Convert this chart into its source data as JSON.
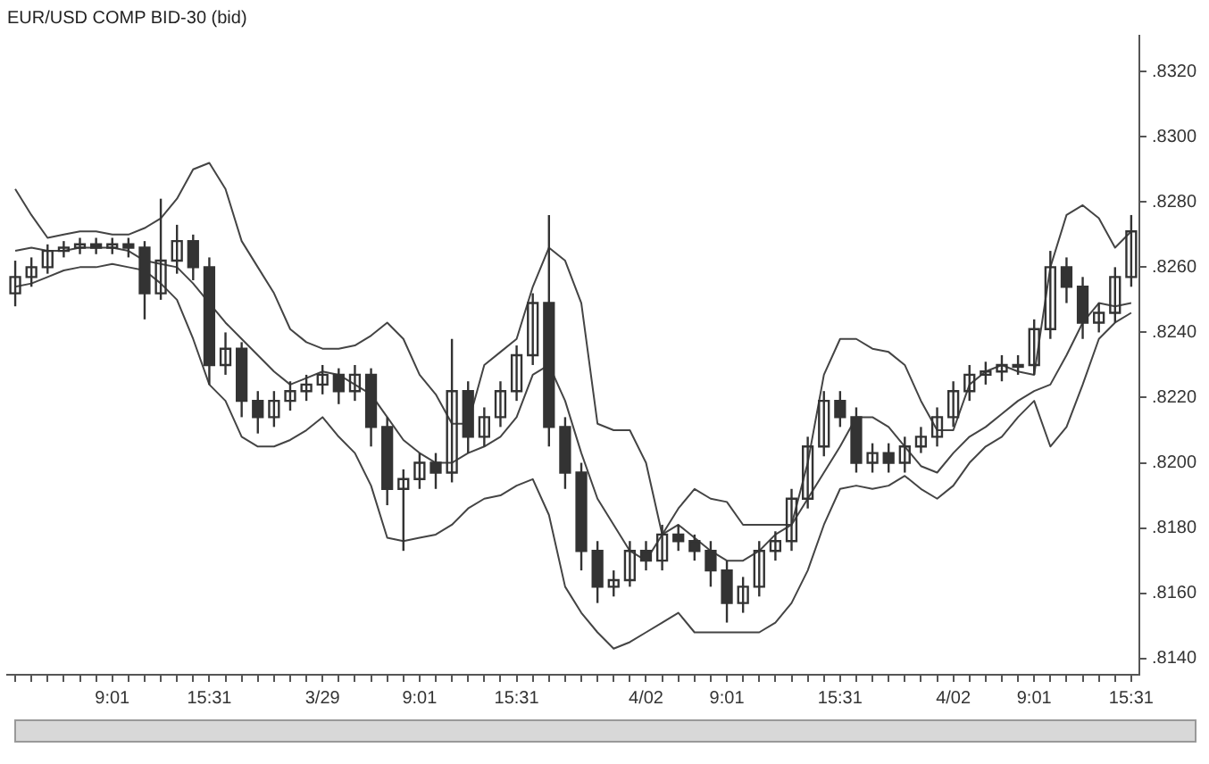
{
  "chart_data": {
    "type": "candlestick",
    "title": "EUR/USD COMP BID-30 (bid)",
    "color": "#333333",
    "categories": [
      null,
      null,
      null,
      null,
      null,
      null,
      "9:01",
      null,
      null,
      null,
      null,
      null,
      "15:31",
      null,
      null,
      null,
      null,
      null,
      null,
      "3/29",
      null,
      null,
      null,
      null,
      null,
      "9:01",
      null,
      null,
      null,
      null,
      null,
      "15:31",
      null,
      null,
      null,
      null,
      null,
      null,
      null,
      "4/02",
      null,
      null,
      null,
      null,
      "9:01",
      null,
      null,
      null,
      null,
      null,
      null,
      "15:31",
      null,
      null,
      null,
      null,
      null,
      null,
      "4/02",
      null,
      null,
      null,
      null,
      "9:01",
      null,
      null,
      null,
      null,
      null,
      "15:31"
    ],
    "ohlc": [
      [
        0.8252,
        0.8262,
        0.8248,
        0.8257
      ],
      [
        0.8257,
        0.8263,
        0.8254,
        0.826
      ],
      [
        0.826,
        0.8267,
        0.8258,
        0.8265
      ],
      [
        0.8265,
        0.8268,
        0.8263,
        0.8266
      ],
      [
        0.8266,
        0.8269,
        0.8264,
        0.8267
      ],
      [
        0.8267,
        0.8269,
        0.8264,
        0.8266
      ],
      [
        0.8266,
        0.8269,
        0.8264,
        0.8267
      ],
      [
        0.8267,
        0.8269,
        0.8263,
        0.8266
      ],
      [
        0.8266,
        0.8268,
        0.8244,
        0.8252
      ],
      [
        0.8252,
        0.8281,
        0.825,
        0.8262
      ],
      [
        0.8262,
        0.8273,
        0.8258,
        0.8268
      ],
      [
        0.8268,
        0.827,
        0.8256,
        0.826
      ],
      [
        0.826,
        0.8263,
        0.8224,
        0.823
      ],
      [
        0.823,
        0.824,
        0.8227,
        0.8235
      ],
      [
        0.8235,
        0.8237,
        0.8214,
        0.8219
      ],
      [
        0.8219,
        0.8222,
        0.8209,
        0.8214
      ],
      [
        0.8214,
        0.8222,
        0.8211,
        0.8219
      ],
      [
        0.8219,
        0.8225,
        0.8216,
        0.8222
      ],
      [
        0.8222,
        0.8227,
        0.8219,
        0.8224
      ],
      [
        0.8224,
        0.823,
        0.8221,
        0.8227
      ],
      [
        0.8227,
        0.8229,
        0.8218,
        0.8222
      ],
      [
        0.8222,
        0.823,
        0.8219,
        0.8227
      ],
      [
        0.8227,
        0.8229,
        0.8205,
        0.8211
      ],
      [
        0.8211,
        0.8214,
        0.8187,
        0.8192
      ],
      [
        0.8192,
        0.8198,
        0.8173,
        0.8195
      ],
      [
        0.8195,
        0.8203,
        0.8192,
        0.82
      ],
      [
        0.82,
        0.8203,
        0.8192,
        0.8197
      ],
      [
        0.8197,
        0.8238,
        0.8194,
        0.8222
      ],
      [
        0.8222,
        0.8225,
        0.8203,
        0.8208
      ],
      [
        0.8208,
        0.8217,
        0.8205,
        0.8214
      ],
      [
        0.8214,
        0.8225,
        0.8211,
        0.8222
      ],
      [
        0.8222,
        0.8236,
        0.8219,
        0.8233
      ],
      [
        0.8233,
        0.8252,
        0.823,
        0.8249
      ],
      [
        0.8249,
        0.8276,
        0.8205,
        0.8211
      ],
      [
        0.8211,
        0.8214,
        0.8192,
        0.8197
      ],
      [
        0.8197,
        0.82,
        0.8167,
        0.8173
      ],
      [
        0.8173,
        0.8176,
        0.8157,
        0.8162
      ],
      [
        0.8162,
        0.8167,
        0.8159,
        0.8164
      ],
      [
        0.8164,
        0.8176,
        0.8162,
        0.8173
      ],
      [
        0.8173,
        0.8176,
        0.8167,
        0.817
      ],
      [
        0.817,
        0.8181,
        0.8167,
        0.8178
      ],
      [
        0.8178,
        0.8181,
        0.8173,
        0.8176
      ],
      [
        0.8176,
        0.8178,
        0.817,
        0.8173
      ],
      [
        0.8173,
        0.8176,
        0.8162,
        0.8167
      ],
      [
        0.8167,
        0.817,
        0.8151,
        0.8157
      ],
      [
        0.8157,
        0.8165,
        0.8154,
        0.8162
      ],
      [
        0.8162,
        0.8176,
        0.8159,
        0.8173
      ],
      [
        0.8173,
        0.8179,
        0.817,
        0.8176
      ],
      [
        0.8176,
        0.8192,
        0.8173,
        0.8189
      ],
      [
        0.8189,
        0.8208,
        0.8186,
        0.8205
      ],
      [
        0.8205,
        0.8222,
        0.8202,
        0.8219
      ],
      [
        0.8219,
        0.8222,
        0.8211,
        0.8214
      ],
      [
        0.8214,
        0.8217,
        0.8197,
        0.82
      ],
      [
        0.82,
        0.8206,
        0.8197,
        0.8203
      ],
      [
        0.8203,
        0.8206,
        0.8197,
        0.82
      ],
      [
        0.82,
        0.8208,
        0.8197,
        0.8205
      ],
      [
        0.8205,
        0.8211,
        0.8203,
        0.8208
      ],
      [
        0.8208,
        0.8217,
        0.8205,
        0.8214
      ],
      [
        0.8214,
        0.8225,
        0.8211,
        0.8222
      ],
      [
        0.8222,
        0.823,
        0.8219,
        0.8227
      ],
      [
        0.8227,
        0.8231,
        0.8224,
        0.8228
      ],
      [
        0.8228,
        0.8233,
        0.8225,
        0.823
      ],
      [
        0.823,
        0.8233,
        0.8227,
        0.823
      ],
      [
        0.823,
        0.8244,
        0.8227,
        0.8241
      ],
      [
        0.8241,
        0.8265,
        0.8238,
        0.826
      ],
      [
        0.826,
        0.8263,
        0.8249,
        0.8254
      ],
      [
        0.8254,
        0.8257,
        0.8238,
        0.8243
      ],
      [
        0.8243,
        0.8249,
        0.824,
        0.8246
      ],
      [
        0.8246,
        0.826,
        0.8243,
        0.8257
      ],
      [
        0.8257,
        0.8276,
        0.8254,
        0.8271
      ]
    ],
    "series": [
      {
        "type": "line",
        "color": "#444444",
        "values": [
          0.8284,
          0.8276,
          0.8269,
          0.827,
          0.8271,
          0.8271,
          0.827,
          0.827,
          0.8272,
          0.8275,
          0.8281,
          0.829,
          0.8292,
          0.8284,
          0.8268,
          0.826,
          0.8252,
          0.8241,
          0.8237,
          0.8235,
          0.8235,
          0.8236,
          0.8239,
          0.8243,
          0.8238,
          0.8227,
          0.8221,
          0.8212,
          0.8212,
          0.823,
          0.8234,
          0.8238,
          0.8254,
          0.8266,
          0.8262,
          0.8249,
          0.8212,
          0.821,
          0.821,
          0.82,
          0.8178,
          0.8186,
          0.8192,
          0.8189,
          0.8188,
          0.8181,
          0.8181,
          0.8181,
          0.8181,
          0.82,
          0.8227,
          0.8238,
          0.8238,
          0.8235,
          0.8234,
          0.823,
          0.8219,
          0.821,
          0.821,
          0.8224,
          0.8228,
          0.823,
          0.8228,
          0.8227,
          0.826,
          0.8276,
          0.8279,
          0.8275,
          0.8266,
          0.8271
        ]
      },
      {
        "type": "line",
        "color": "#444444",
        "values": [
          0.8265,
          0.8266,
          0.8265,
          0.8265,
          0.8266,
          0.8266,
          0.8266,
          0.8265,
          0.8262,
          0.8261,
          0.826,
          0.8255,
          0.8249,
          0.8243,
          0.8238,
          0.8233,
          0.8228,
          0.8224,
          0.8226,
          0.8228,
          0.8227,
          0.8224,
          0.8221,
          0.8214,
          0.8207,
          0.8203,
          0.82,
          0.82,
          0.8203,
          0.8205,
          0.8208,
          0.8214,
          0.8227,
          0.823,
          0.8219,
          0.8203,
          0.8189,
          0.8181,
          0.8173,
          0.817,
          0.8178,
          0.8181,
          0.8177,
          0.8173,
          0.817,
          0.817,
          0.8173,
          0.8178,
          0.8181,
          0.8189,
          0.8197,
          0.8205,
          0.8214,
          0.8214,
          0.8211,
          0.8205,
          0.8199,
          0.8197,
          0.8203,
          0.8208,
          0.8211,
          0.8215,
          0.8219,
          0.8222,
          0.8224,
          0.8233,
          0.8243,
          0.8249,
          0.8248,
          0.8249
        ]
      },
      {
        "type": "line",
        "color": "#444444",
        "values": [
          0.8254,
          0.8255,
          0.8257,
          0.8259,
          0.826,
          0.826,
          0.8261,
          0.826,
          0.8259,
          0.8255,
          0.825,
          0.8238,
          0.8224,
          0.8219,
          0.8208,
          0.8205,
          0.8205,
          0.8207,
          0.821,
          0.8214,
          0.8208,
          0.8203,
          0.8193,
          0.8177,
          0.8176,
          0.8177,
          0.8178,
          0.8181,
          0.8186,
          0.8189,
          0.819,
          0.8193,
          0.8195,
          0.8184,
          0.8162,
          0.8154,
          0.8148,
          0.8143,
          0.8145,
          0.8148,
          0.8151,
          0.8154,
          0.8148,
          0.8148,
          0.8148,
          0.8148,
          0.8148,
          0.8151,
          0.8157,
          0.8167,
          0.8181,
          0.8192,
          0.8193,
          0.8192,
          0.8193,
          0.8196,
          0.8192,
          0.8189,
          0.8193,
          0.82,
          0.8205,
          0.8208,
          0.8214,
          0.8219,
          0.8205,
          0.8211,
          0.8224,
          0.8238,
          0.8243,
          0.8246
        ]
      }
    ],
    "ylim": [
      0.8135,
      0.8331
    ],
    "yticks": [
      {
        "value": 0.832,
        "label": ".8320"
      },
      {
        "value": 0.83,
        "label": ".8300"
      },
      {
        "value": 0.828,
        "label": ".8280"
      },
      {
        "value": 0.826,
        "label": ".8260"
      },
      {
        "value": 0.824,
        "label": ".8240"
      },
      {
        "value": 0.822,
        "label": ".8220"
      },
      {
        "value": 0.82,
        "label": ".8200"
      },
      {
        "value": 0.818,
        "label": ".8180"
      },
      {
        "value": 0.816,
        "label": ".8160"
      },
      {
        "value": 0.814,
        "label": ".8140"
      }
    ],
    "marker": "none"
  }
}
